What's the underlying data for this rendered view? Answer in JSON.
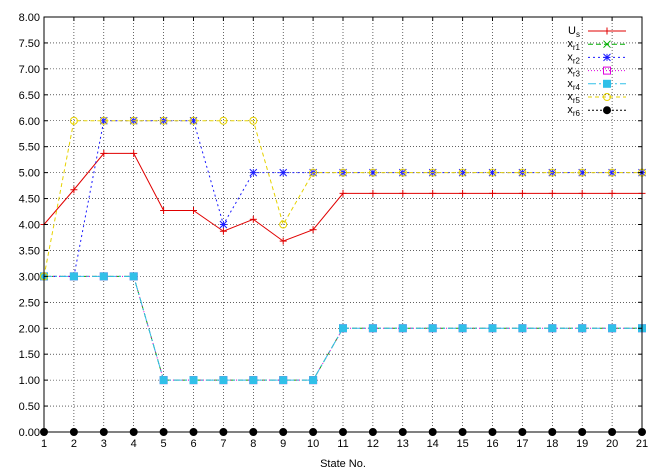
{
  "chart_data": {
    "type": "line",
    "xlabel": "State No.",
    "ylabel": "",
    "ylim": [
      0,
      8
    ],
    "xlim": [
      1,
      21
    ],
    "grid": true,
    "legend_position": "top-right",
    "x": [
      1,
      2,
      3,
      4,
      5,
      6,
      7,
      8,
      9,
      10,
      11,
      12,
      13,
      14,
      15,
      16,
      17,
      18,
      19,
      20,
      21
    ],
    "x_tick_labels": [
      "1",
      "2",
      "3",
      "4",
      "5",
      "6",
      "7",
      "8",
      "9",
      "10",
      "11",
      "12",
      "13",
      "14",
      "15",
      "16",
      "17",
      "18",
      "19",
      "20",
      "21"
    ],
    "y_ticks": [
      0,
      0.5,
      1,
      1.5,
      2,
      2.5,
      3,
      3.5,
      4,
      4.5,
      5,
      5.5,
      6,
      6.5,
      7,
      7.5,
      8
    ],
    "y_tick_labels": [
      "0.00",
      "0.50",
      "1.00",
      "1.50",
      "2.00",
      "2.50",
      "3.00",
      "3.50",
      "4.00",
      "4.50",
      "5.00",
      "5.50",
      "6.00",
      "6.50",
      "7.00",
      "7.50",
      "8.00"
    ],
    "series": [
      {
        "key": "Us",
        "name": "U",
        "subscript": "s",
        "color": "#e00000",
        "dash": "",
        "marker": "plus",
        "values": [
          4.0,
          4.67,
          5.37,
          5.37,
          4.27,
          4.27,
          3.87,
          4.1,
          3.68,
          3.9,
          4.6,
          4.6,
          4.6,
          4.6,
          4.6,
          4.6,
          4.6,
          4.6,
          4.6,
          4.6,
          4.6
        ]
      },
      {
        "key": "xr1",
        "name": "x",
        "subscript": "r1",
        "color": "#00b000",
        "dash": "5,3",
        "marker": "x",
        "values": [
          3,
          3,
          3,
          3,
          1,
          1,
          1,
          1,
          1,
          1,
          2,
          2,
          2,
          2,
          2,
          2,
          2,
          2,
          2,
          2,
          2
        ]
      },
      {
        "key": "xr2",
        "name": "x",
        "subscript": "r2",
        "color": "#1a1aff",
        "dash": "2,3",
        "marker": "star",
        "values": [
          3,
          3,
          6,
          6,
          6,
          6,
          4,
          5,
          5,
          5,
          5,
          5,
          5,
          5,
          5,
          5,
          5,
          5,
          5,
          5,
          5
        ]
      },
      {
        "key": "xr3",
        "name": "x",
        "subscript": "r3",
        "color": "#e000e0",
        "dash": "1,2",
        "marker": "square-open",
        "values": [
          3,
          3,
          3,
          3,
          1,
          1,
          1,
          1,
          1,
          1,
          2,
          2,
          2,
          2,
          2,
          2,
          2,
          2,
          2,
          2,
          2
        ]
      },
      {
        "key": "xr4",
        "name": "x",
        "subscript": "r4",
        "color": "#30c0e8",
        "dash": "8,3,2,3",
        "marker": "square-filled",
        "values": [
          3,
          3,
          3,
          3,
          1,
          1,
          1,
          1,
          1,
          1,
          2,
          2,
          2,
          2,
          2,
          2,
          2,
          2,
          2,
          2,
          2
        ]
      },
      {
        "key": "xr5",
        "name": "x",
        "subscript": "r5",
        "color": "#e6d200",
        "dash": "4,3",
        "marker": "circle-open",
        "values": [
          3,
          6,
          6,
          6,
          6,
          6,
          6,
          6,
          4,
          5,
          5,
          5,
          5,
          5,
          5,
          5,
          5,
          5,
          5,
          5,
          5
        ]
      },
      {
        "key": "xr6",
        "name": "x",
        "subscript": "r6",
        "color": "#000000",
        "dash": "2,2",
        "marker": "circle-filled",
        "values": [
          0,
          0,
          0,
          0,
          0,
          0,
          0,
          0,
          0,
          0,
          0,
          0,
          0,
          0,
          0,
          0,
          0,
          0,
          0,
          0,
          0
        ]
      }
    ]
  }
}
